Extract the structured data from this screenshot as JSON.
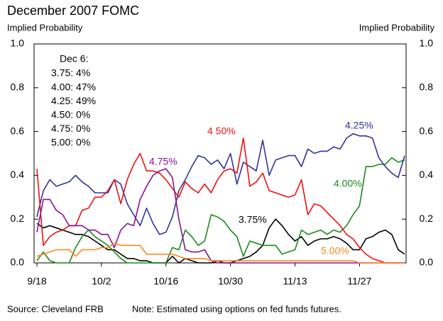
{
  "chart_data": {
    "type": "line",
    "title": "December 2007 FOMC",
    "ylabel": "Implied Probability",
    "y2label": "Implied Probability",
    "source": "Source: Cleveland FRB",
    "note": "Note: Estimated using options on fed funds futures.",
    "annotation": {
      "title": "Dec 6:",
      "lines": [
        "3.75: 4%",
        "4.00: 47%",
        "4.25: 49%",
        "4.50: 0%",
        "4.75: 0%",
        "5.00: 0%"
      ]
    },
    "categories": [
      "9/18",
      null,
      null,
      null,
      null,
      null,
      null,
      null,
      null,
      null,
      "10/2",
      null,
      null,
      null,
      null,
      null,
      null,
      null,
      null,
      null,
      "10/16",
      null,
      null,
      null,
      null,
      null,
      null,
      null,
      null,
      null,
      "10/30",
      null,
      null,
      null,
      null,
      null,
      null,
      null,
      null,
      null,
      "11/13",
      null,
      null,
      null,
      null,
      null,
      null,
      null,
      null,
      null,
      "11/27",
      null,
      null,
      null,
      null,
      null,
      null,
      null
    ],
    "ylim": [
      0,
      1
    ],
    "yticks": [
      {
        "value": 0,
        "label": "0.0"
      },
      0.2,
      0.4,
      0.6,
      0.8,
      {
        "value": 1,
        "label": "1.0"
      }
    ],
    "y2lim": [
      0,
      1
    ],
    "y2ticks": [
      {
        "value": 0,
        "label": "0.0"
      },
      0.2,
      0.4,
      0.6,
      0.8,
      {
        "value": 1,
        "label": "1.0"
      }
    ],
    "grid": false,
    "series": [
      {
        "name": "3.75%",
        "color": "#000000",
        "values": [
          0.18,
          0.16,
          0.17,
          0.16,
          0.15,
          0.14,
          0.13,
          0.13,
          0.12,
          0.1,
          0.08,
          0.06,
          0.06,
          0.04,
          0.02,
          0.02,
          0.01,
          0.01,
          0.0,
          0.0,
          0.0,
          0.03,
          0.0,
          0.02,
          0.01,
          0.0,
          0.0,
          0.0,
          0.01,
          0.0,
          0.0,
          0.01,
          0.02,
          0.03,
          0.05,
          0.08,
          0.16,
          0.2,
          0.17,
          0.13,
          0.1,
          0.12,
          0.08,
          0.1,
          0.11,
          0.11,
          0.12,
          0.11,
          0.09,
          0.06,
          0.06,
          0.11,
          0.12,
          0.14,
          0.15,
          0.13,
          0.06,
          0.04
        ]
      },
      {
        "name": "4.00%",
        "color": "#1a8a1a",
        "values": [
          0.01,
          0.05,
          0.01,
          0.0,
          0.0,
          0.0,
          0.07,
          0.12,
          0.15,
          0.12,
          0.1,
          0.08,
          0.05,
          0.02,
          0.0,
          0.0,
          0.0,
          0.0,
          0.0,
          0.0,
          0.0,
          0.07,
          0.06,
          0.15,
          0.12,
          0.08,
          0.1,
          0.22,
          0.21,
          0.19,
          0.15,
          0.12,
          0.03,
          0.1,
          0.09,
          0.08,
          0.08,
          0.08,
          0.04,
          0.05,
          0.06,
          0.15,
          0.13,
          0.14,
          0.15,
          0.13,
          0.15,
          0.14,
          0.17,
          0.22,
          0.26,
          0.44,
          0.44,
          0.45,
          0.45,
          0.48,
          0.46,
          0.47
        ]
      },
      {
        "name": "4.25%",
        "color": "#333399",
        "values": [
          0.21,
          0.33,
          0.38,
          0.35,
          0.36,
          0.37,
          0.4,
          0.37,
          0.35,
          0.32,
          0.32,
          0.32,
          0.38,
          0.36,
          0.27,
          0.22,
          0.17,
          0.25,
          0.18,
          0.13,
          0.14,
          0.21,
          0.33,
          0.38,
          0.44,
          0.49,
          0.48,
          0.45,
          0.47,
          0.43,
          0.5,
          0.36,
          0.46,
          0.44,
          0.42,
          0.56,
          0.4,
          0.47,
          0.48,
          0.49,
          0.49,
          0.44,
          0.52,
          0.5,
          0.51,
          0.51,
          0.53,
          0.52,
          0.57,
          0.59,
          0.58,
          0.58,
          0.57,
          0.48,
          0.44,
          0.41,
          0.39,
          0.49
        ]
      },
      {
        "name": "4 50%",
        "color": "#ee1111",
        "values": [
          0.43,
          0.08,
          0.12,
          0.14,
          0.15,
          0.17,
          0.17,
          0.24,
          0.25,
          0.3,
          0.3,
          0.33,
          0.38,
          0.27,
          0.38,
          0.45,
          0.5,
          0.42,
          0.42,
          0.41,
          0.38,
          0.34,
          0.3,
          0.37,
          0.34,
          0.32,
          0.36,
          0.32,
          0.38,
          0.42,
          0.43,
          0.41,
          0.57,
          0.35,
          0.37,
          0.41,
          0.33,
          0.32,
          0.31,
          0.3,
          0.31,
          0.38,
          0.22,
          0.27,
          0.26,
          0.23,
          0.2,
          0.17,
          0.13,
          0.11,
          0.07,
          0.04,
          0.02,
          0.01,
          0.0,
          0.0,
          0.0,
          0.0
        ]
      },
      {
        "name": "4.75%",
        "color": "#881199",
        "values": [
          0.14,
          0.29,
          0.29,
          0.24,
          0.22,
          0.17,
          0.17,
          0.17,
          0.15,
          0.15,
          0.13,
          0.13,
          0.07,
          0.15,
          0.18,
          0.17,
          0.29,
          0.35,
          0.4,
          0.42,
          0.43,
          0.39,
          0.2,
          0.06,
          0.05,
          0.05,
          0.06,
          0.01,
          0.0,
          0.0,
          0,
          0,
          0,
          0,
          0,
          0,
          0,
          0,
          0,
          0,
          0,
          0,
          0,
          0,
          0,
          0,
          0,
          0,
          0,
          0,
          0,
          0,
          0,
          0,
          0,
          0,
          0,
          0
        ]
      },
      {
        "name": "5.00%",
        "color": "#ff8822",
        "values": [
          0.03,
          0.04,
          0.05,
          0.06,
          0.06,
          0.06,
          0.03,
          0.06,
          0.06,
          0.06,
          0.07,
          0.07,
          0.09,
          0.08,
          0.08,
          0.08,
          0.08,
          0.04,
          0.04,
          0.04,
          0.04,
          0.04,
          0.03,
          0.02,
          0.02,
          0.02,
          0.02,
          0.01,
          0.01,
          0.01,
          0.01,
          0.01,
          0.01,
          0.01,
          0.01,
          0.01,
          0.01,
          0.01,
          0.01,
          0.01,
          0.01,
          0.01,
          0.01,
          0.01,
          0.01,
          0.01,
          0.01,
          0.01,
          0.01,
          0.01,
          0,
          0,
          0,
          0,
          0,
          0,
          0,
          0
        ]
      }
    ]
  }
}
